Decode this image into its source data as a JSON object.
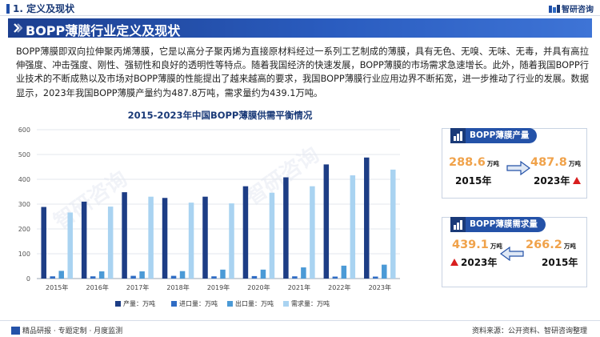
{
  "header": {
    "section": "1. 定义及现状",
    "logo_text": "智研咨询"
  },
  "banner": {
    "title": "BOPP薄膜行业定义及现状"
  },
  "paragraph": "BOPP薄膜即双向拉伸聚丙烯薄膜，它是以高分子聚丙烯为直接原材料经过一系列工艺制成的薄膜，具有无色、无嗅、无味、无毒，并具有高拉伸强度、冲击强度、刚性、强韧性和良好的透明性等特点。随着我国经济的快速发展，BOPP薄膜的市场需求急速增长。此外，随着我国BOPP行业技术的不断成熟以及市场对BOPP薄膜的性能提出了越来越高的要求，我国BOPP薄膜行业应用边界不断拓宽，进一步推动了行业的发展。数据显示，2023年我国BOPP薄膜产量约为487.8万吨，需求量约为439.1万吨。",
  "chart_data": {
    "type": "bar",
    "title": "2015-2023年中国BOPP薄膜供需平衡情况",
    "categories": [
      "2015年",
      "2016年",
      "2017年",
      "2018年",
      "2019年",
      "2020年",
      "2021年",
      "2022年",
      "2023年"
    ],
    "ylim": [
      0,
      600
    ],
    "yticks": [
      0,
      100,
      200,
      300,
      400,
      500,
      600
    ],
    "grid": true,
    "legend_position": "bottom",
    "series": [
      {
        "name": "产量：万吨",
        "color": "#1d3d85",
        "values": [
          288.6,
          310,
          348,
          325,
          330,
          372,
          408,
          460,
          487.8
        ]
      },
      {
        "name": "进口量：万吨",
        "color": "#2f6cc4",
        "values": [
          9,
          9,
          11,
          11,
          9,
          10,
          9,
          8,
          8
        ]
      },
      {
        "name": "出口量：万吨",
        "color": "#4b9ad6",
        "values": [
          31,
          29,
          29,
          30,
          36,
          36,
          45,
          52,
          56
        ]
      },
      {
        "name": "需求量：万吨",
        "color": "#a9d3f1",
        "values": [
          266.2,
          290,
          330,
          306,
          303,
          346,
          372,
          416,
          439.1
        ]
      }
    ]
  },
  "cards": {
    "production": {
      "title": "BOPP薄膜产量",
      "from_value": "288.6",
      "from_unit": "万吨",
      "from_year": "2015年",
      "to_value": "487.8",
      "to_unit": "万吨",
      "to_year": "2023年"
    },
    "demand": {
      "title": "BOPP薄膜需求量",
      "left_value": "439.1",
      "left_unit": "万吨",
      "left_year": "2023年",
      "right_value": "266.2",
      "right_unit": "万吨",
      "right_year": "2015年"
    }
  },
  "footer": {
    "left": "精品研报 · 专题定制 · 月度监测",
    "right": "资料来源：公开资料、智研咨询整理"
  },
  "colors": {
    "brand": "#1f4fa8",
    "banner": "#2452a8",
    "highlight_value": "#f0a24a",
    "up_arrow": "#d81e1e"
  },
  "icons": [
    "logo-icon",
    "chevron-icon",
    "bar-chart-icon",
    "right-arrow-icon",
    "left-arrow-icon",
    "up-arrow-icon",
    "report-icon"
  ]
}
